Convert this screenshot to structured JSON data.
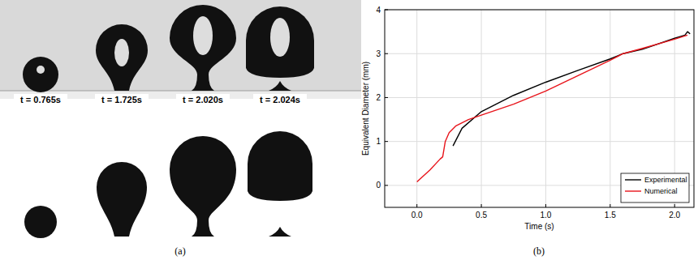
{
  "figure": {
    "panel_labels": [
      "(a)",
      "(b)"
    ],
    "frames": [
      {
        "time_label": "t = 0.765s"
      },
      {
        "time_label": "t = 1.725s"
      },
      {
        "time_label": "t = 2.020s"
      },
      {
        "time_label": "t = 2.024s"
      }
    ]
  },
  "chart_data": {
    "type": "line",
    "x_label": "Time (s)",
    "y_label": "Equivalent Diameter (mm)",
    "xlim": [
      -0.25,
      2.15
    ],
    "xticks": [
      {
        "value": 0,
        "label": "0.0"
      },
      {
        "value": 0.5,
        "label": "0.5"
      },
      {
        "value": 1,
        "label": "1.0"
      },
      {
        "value": 1.5,
        "label": "1.5"
      },
      {
        "value": 2,
        "label": "2.0"
      }
    ],
    "ylim": [
      -0.5,
      4
    ],
    "yticks": [
      0,
      1,
      2,
      3,
      4
    ],
    "grid": true,
    "legend": "lower right",
    "series": [
      {
        "name": "Experimental",
        "color": "#000000",
        "x": [
          0.28,
          0.35,
          0.5,
          0.75,
          1.0,
          1.25,
          1.5,
          1.6,
          1.75,
          2.0,
          2.08,
          2.1,
          2.12
        ],
        "values": [
          0.9,
          1.3,
          1.68,
          2.05,
          2.35,
          2.62,
          2.88,
          3.0,
          3.1,
          3.35,
          3.42,
          3.5,
          3.45
        ]
      },
      {
        "name": "Numerical",
        "color": "#e8141b",
        "x": [
          0.0,
          0.1,
          0.18,
          0.2,
          0.22,
          0.25,
          0.3,
          0.4,
          0.5,
          0.75,
          1.0,
          1.25,
          1.5,
          1.6,
          1.75,
          2.0,
          2.1
        ],
        "values": [
          0.08,
          0.35,
          0.6,
          0.65,
          1.0,
          1.2,
          1.35,
          1.5,
          1.6,
          1.85,
          2.15,
          2.5,
          2.85,
          3.0,
          3.12,
          3.33,
          3.42
        ]
      }
    ]
  }
}
